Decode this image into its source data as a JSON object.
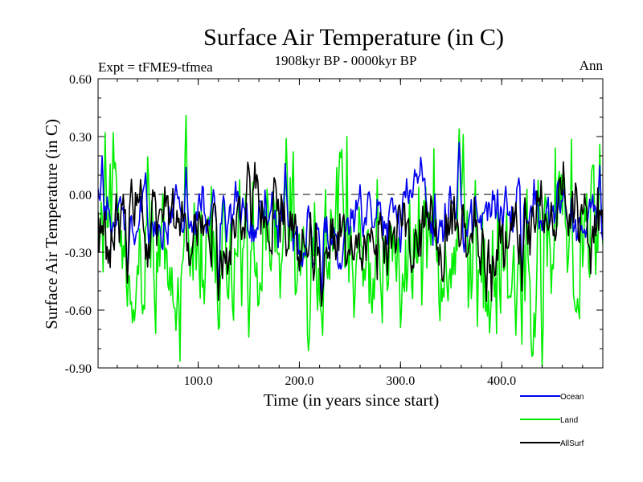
{
  "chart_data": {
    "type": "line",
    "title": "Surface Air Temperature (in C)",
    "subtitle_left": "Expt = tFME9-tfmea",
    "subtitle_center": "1908kyr BP - 0000kyr BP",
    "subtitle_right": "Ann",
    "xlabel": "Time (in years since start)",
    "ylabel": "Surface Air Temperature (in C)",
    "xlim": [
      1,
      500
    ],
    "ylim": [
      -0.9,
      0.6
    ],
    "x_ticks": [
      100,
      200,
      300,
      400
    ],
    "x_tick_labels": [
      "100.0",
      "200.0",
      "300.0",
      "400.0"
    ],
    "y_ticks": [
      0.6,
      0.3,
      0.0,
      -0.3,
      -0.6,
      -0.9
    ],
    "y_tick_labels": [
      "0.60",
      "0.30",
      "0.00",
      "-0.30",
      "-0.60",
      "-0.90"
    ],
    "zero_reference_line": 0.0,
    "x": {
      "start": 1,
      "end": 500,
      "step": 1
    },
    "series": [
      {
        "name": "Land",
        "color": "#00ee00",
        "seed": 4242,
        "mean": -0.31,
        "noise": 0.19,
        "smooth": 0.55,
        "anchors": [
          [
            1,
            -0.28
          ],
          [
            8,
            0.32
          ],
          [
            20,
            -0.05
          ],
          [
            30,
            -0.58
          ],
          [
            45,
            -0.62
          ],
          [
            88,
            0.41
          ],
          [
            120,
            -0.7
          ],
          [
            150,
            -0.74
          ],
          [
            187,
            0.29
          ],
          [
            218,
            -0.6
          ],
          [
            223,
            -0.73
          ],
          [
            240,
            0.22
          ],
          [
            300,
            -0.69
          ],
          [
            358,
            0.34
          ],
          [
            362,
            0.31
          ],
          [
            430,
            -0.84
          ],
          [
            440,
            -0.89
          ],
          [
            497,
            0.26
          ]
        ]
      },
      {
        "name": "Ocean",
        "color": "#0000ee",
        "seed": 1717,
        "mean": -0.13,
        "noise": 0.1,
        "smooth": 0.72,
        "anchors": [
          [
            1,
            0.03
          ],
          [
            5,
            0.2
          ],
          [
            30,
            -0.42
          ],
          [
            88,
            0.14
          ],
          [
            120,
            -0.5
          ],
          [
            186,
            0.16
          ],
          [
            222,
            -0.52
          ],
          [
            260,
            0.05
          ],
          [
            300,
            -0.3
          ],
          [
            358,
            0.27
          ],
          [
            420,
            -0.48
          ],
          [
            497,
            0.15
          ]
        ]
      },
      {
        "name": "AllSurf",
        "color": "#000000",
        "seed": 2929,
        "mean": -0.19,
        "noise": 0.12,
        "smooth": 0.68,
        "anchors": [
          [
            30,
            -0.46
          ],
          [
            120,
            -0.55
          ],
          [
            222,
            -0.58
          ],
          [
            420,
            -0.5
          ]
        ]
      }
    ],
    "legend": {
      "position": "bottom-right",
      "entries": [
        {
          "label": "Ocean",
          "color": "#0000ee"
        },
        {
          "label": "Land",
          "color": "#00ee00"
        },
        {
          "label": "AllSurf",
          "color": "#000000"
        }
      ]
    }
  }
}
